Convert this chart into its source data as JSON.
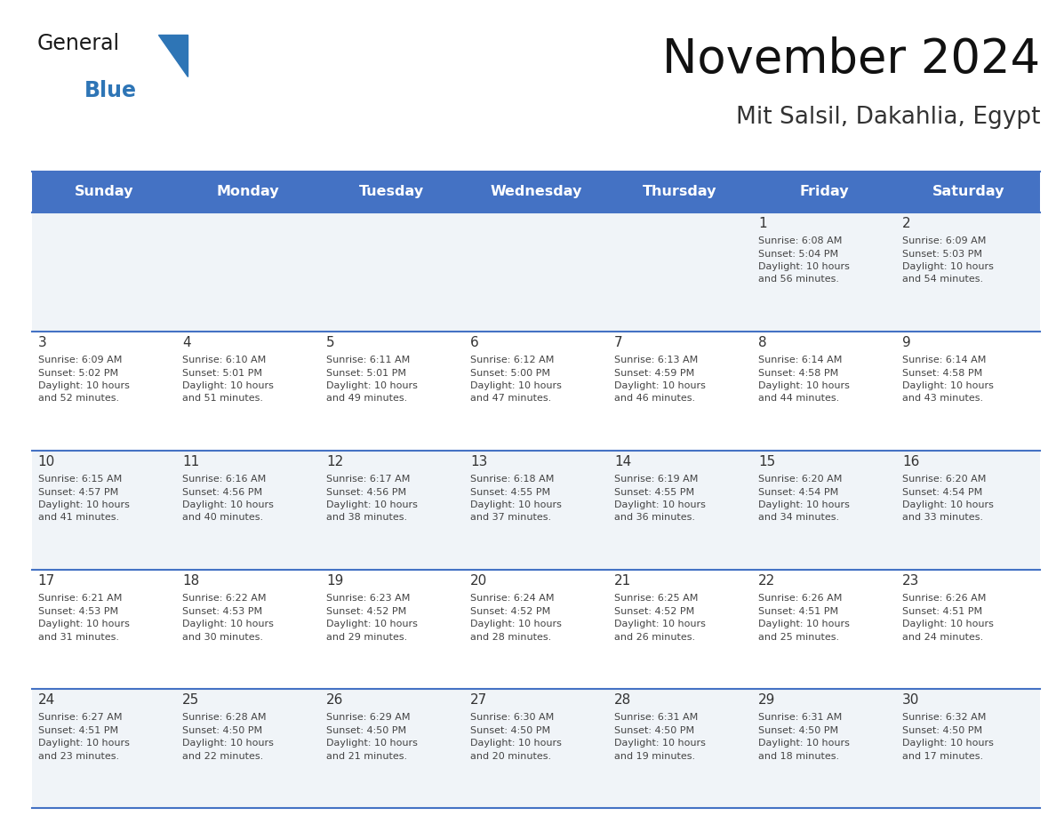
{
  "title": "November 2024",
  "subtitle": "Mit Salsil, Dakahlia, Egypt",
  "header_bg_color": "#4472C4",
  "header_text_color": "#FFFFFF",
  "weekdays": [
    "Sunday",
    "Monday",
    "Tuesday",
    "Wednesday",
    "Thursday",
    "Friday",
    "Saturday"
  ],
  "cell_border_color": "#4472C4",
  "day_number_color": "#333333",
  "cell_text_color": "#444444",
  "logo_general_color": "#1a1a1a",
  "logo_blue_color": "#2E75B6",
  "calendar": [
    [
      {
        "day": "",
        "info": ""
      },
      {
        "day": "",
        "info": ""
      },
      {
        "day": "",
        "info": ""
      },
      {
        "day": "",
        "info": ""
      },
      {
        "day": "",
        "info": ""
      },
      {
        "day": "1",
        "info": "Sunrise: 6:08 AM\nSunset: 5:04 PM\nDaylight: 10 hours\nand 56 minutes."
      },
      {
        "day": "2",
        "info": "Sunrise: 6:09 AM\nSunset: 5:03 PM\nDaylight: 10 hours\nand 54 minutes."
      }
    ],
    [
      {
        "day": "3",
        "info": "Sunrise: 6:09 AM\nSunset: 5:02 PM\nDaylight: 10 hours\nand 52 minutes."
      },
      {
        "day": "4",
        "info": "Sunrise: 6:10 AM\nSunset: 5:01 PM\nDaylight: 10 hours\nand 51 minutes."
      },
      {
        "day": "5",
        "info": "Sunrise: 6:11 AM\nSunset: 5:01 PM\nDaylight: 10 hours\nand 49 minutes."
      },
      {
        "day": "6",
        "info": "Sunrise: 6:12 AM\nSunset: 5:00 PM\nDaylight: 10 hours\nand 47 minutes."
      },
      {
        "day": "7",
        "info": "Sunrise: 6:13 AM\nSunset: 4:59 PM\nDaylight: 10 hours\nand 46 minutes."
      },
      {
        "day": "8",
        "info": "Sunrise: 6:14 AM\nSunset: 4:58 PM\nDaylight: 10 hours\nand 44 minutes."
      },
      {
        "day": "9",
        "info": "Sunrise: 6:14 AM\nSunset: 4:58 PM\nDaylight: 10 hours\nand 43 minutes."
      }
    ],
    [
      {
        "day": "10",
        "info": "Sunrise: 6:15 AM\nSunset: 4:57 PM\nDaylight: 10 hours\nand 41 minutes."
      },
      {
        "day": "11",
        "info": "Sunrise: 6:16 AM\nSunset: 4:56 PM\nDaylight: 10 hours\nand 40 minutes."
      },
      {
        "day": "12",
        "info": "Sunrise: 6:17 AM\nSunset: 4:56 PM\nDaylight: 10 hours\nand 38 minutes."
      },
      {
        "day": "13",
        "info": "Sunrise: 6:18 AM\nSunset: 4:55 PM\nDaylight: 10 hours\nand 37 minutes."
      },
      {
        "day": "14",
        "info": "Sunrise: 6:19 AM\nSunset: 4:55 PM\nDaylight: 10 hours\nand 36 minutes."
      },
      {
        "day": "15",
        "info": "Sunrise: 6:20 AM\nSunset: 4:54 PM\nDaylight: 10 hours\nand 34 minutes."
      },
      {
        "day": "16",
        "info": "Sunrise: 6:20 AM\nSunset: 4:54 PM\nDaylight: 10 hours\nand 33 minutes."
      }
    ],
    [
      {
        "day": "17",
        "info": "Sunrise: 6:21 AM\nSunset: 4:53 PM\nDaylight: 10 hours\nand 31 minutes."
      },
      {
        "day": "18",
        "info": "Sunrise: 6:22 AM\nSunset: 4:53 PM\nDaylight: 10 hours\nand 30 minutes."
      },
      {
        "day": "19",
        "info": "Sunrise: 6:23 AM\nSunset: 4:52 PM\nDaylight: 10 hours\nand 29 minutes."
      },
      {
        "day": "20",
        "info": "Sunrise: 6:24 AM\nSunset: 4:52 PM\nDaylight: 10 hours\nand 28 minutes."
      },
      {
        "day": "21",
        "info": "Sunrise: 6:25 AM\nSunset: 4:52 PM\nDaylight: 10 hours\nand 26 minutes."
      },
      {
        "day": "22",
        "info": "Sunrise: 6:26 AM\nSunset: 4:51 PM\nDaylight: 10 hours\nand 25 minutes."
      },
      {
        "day": "23",
        "info": "Sunrise: 6:26 AM\nSunset: 4:51 PM\nDaylight: 10 hours\nand 24 minutes."
      }
    ],
    [
      {
        "day": "24",
        "info": "Sunrise: 6:27 AM\nSunset: 4:51 PM\nDaylight: 10 hours\nand 23 minutes."
      },
      {
        "day": "25",
        "info": "Sunrise: 6:28 AM\nSunset: 4:50 PM\nDaylight: 10 hours\nand 22 minutes."
      },
      {
        "day": "26",
        "info": "Sunrise: 6:29 AM\nSunset: 4:50 PM\nDaylight: 10 hours\nand 21 minutes."
      },
      {
        "day": "27",
        "info": "Sunrise: 6:30 AM\nSunset: 4:50 PM\nDaylight: 10 hours\nand 20 minutes."
      },
      {
        "day": "28",
        "info": "Sunrise: 6:31 AM\nSunset: 4:50 PM\nDaylight: 10 hours\nand 19 minutes."
      },
      {
        "day": "29",
        "info": "Sunrise: 6:31 AM\nSunset: 4:50 PM\nDaylight: 10 hours\nand 18 minutes."
      },
      {
        "day": "30",
        "info": "Sunrise: 6:32 AM\nSunset: 4:50 PM\nDaylight: 10 hours\nand 17 minutes."
      }
    ]
  ]
}
